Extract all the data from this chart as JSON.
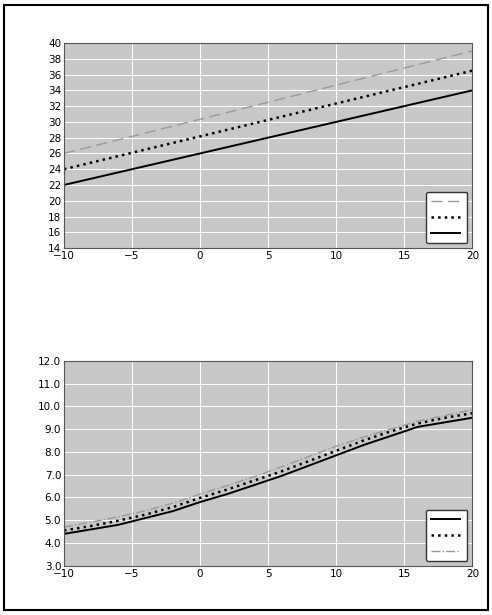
{
  "chart1": {
    "x": [
      -10,
      20
    ],
    "line_solid": [
      22,
      34
    ],
    "line_dotted": [
      24,
      36.5
    ],
    "line_dashed": [
      26,
      39
    ],
    "ylim": [
      14,
      40
    ],
    "yticks": [
      14,
      16,
      18,
      20,
      22,
      24,
      26,
      28,
      30,
      32,
      34,
      36,
      38,
      40
    ],
    "xlim": [
      -10,
      20
    ],
    "xticks": [
      -10,
      -5,
      0,
      5,
      10,
      15,
      20
    ],
    "bg_color": "#c8c8c8",
    "line_solid_color": "#000000",
    "line_dotted_color": "#000000",
    "line_dashed_color": "#999999"
  },
  "chart2": {
    "x": [
      -10,
      -8,
      -6,
      -4,
      -2,
      0,
      2,
      4,
      6,
      8,
      10,
      12,
      14,
      16,
      18,
      20
    ],
    "line_solid": [
      4.4,
      4.6,
      4.8,
      5.1,
      5.4,
      5.8,
      6.15,
      6.55,
      6.95,
      7.4,
      7.85,
      8.3,
      8.7,
      9.1,
      9.3,
      9.5
    ],
    "line_dotted": [
      4.55,
      4.75,
      4.98,
      5.25,
      5.58,
      5.98,
      6.35,
      6.75,
      7.15,
      7.6,
      8.05,
      8.5,
      8.9,
      9.25,
      9.5,
      9.7
    ],
    "line_dashdot": [
      4.7,
      4.92,
      5.15,
      5.42,
      5.75,
      6.15,
      6.52,
      6.92,
      7.35,
      7.8,
      8.25,
      8.65,
      9.0,
      9.35,
      9.6,
      9.85
    ],
    "ylim": [
      3.0,
      12.0
    ],
    "yticks": [
      3.0,
      4.0,
      5.0,
      6.0,
      7.0,
      8.0,
      9.0,
      10.0,
      11.0,
      12.0
    ],
    "xlim": [
      -10,
      20
    ],
    "xticks": [
      -10,
      -5,
      0,
      5,
      10,
      15,
      20
    ],
    "bg_color": "#c8c8c8",
    "line_solid_color": "#000000",
    "line_dotted_color": "#000000",
    "line_dashdot_color": "#999999"
  },
  "figure_bg": "#ffffff",
  "chart_border_color": "#555555",
  "grid_color": "#ffffff",
  "tick_labelsize": 7.5
}
